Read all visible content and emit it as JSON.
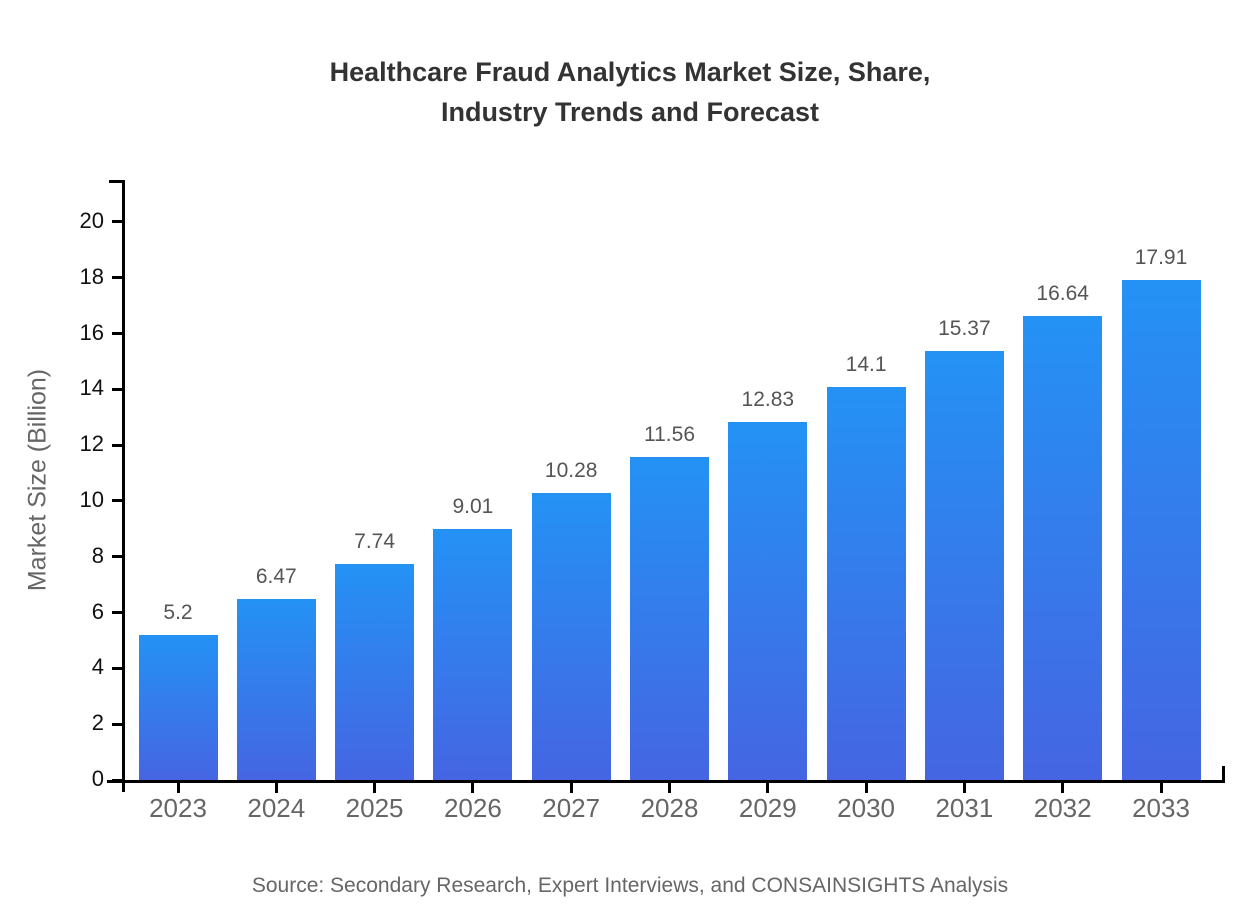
{
  "figure": {
    "title_line1": "Healthcare Fraud Analytics Market Size, Share,",
    "title_line2": "Industry Trends and Forecast",
    "source": "Source: Secondary Research, Expert Interviews, and CONSAINSIGHTS Analysis"
  },
  "chart_data": {
    "type": "bar",
    "title": "Healthcare Fraud Analytics Market Size, Share, Industry Trends and Forecast",
    "categories": [
      "2023",
      "2024",
      "2025",
      "2026",
      "2027",
      "2028",
      "2029",
      "2030",
      "2031",
      "2032",
      "2033"
    ],
    "values": [
      5.2,
      6.47,
      7.74,
      9.01,
      10.28,
      11.56,
      12.83,
      14.1,
      15.37,
      16.64,
      17.91
    ],
    "value_labels": [
      "5.2",
      "6.47",
      "7.74",
      "9.01",
      "10.28",
      "11.56",
      "12.83",
      "14.1",
      "15.37",
      "16.64",
      "17.91"
    ],
    "xlabel": "",
    "ylabel": "Market Size (Billion)",
    "ylim": [
      0,
      21.5
    ],
    "yticks": [
      0,
      2,
      4,
      6,
      8,
      10,
      12,
      14,
      16,
      18,
      20
    ],
    "grid": false,
    "legend": null,
    "colors": {
      "bar_gradient_top": "#2492f5",
      "bar_gradient_bottom": "#4565e2",
      "axis": "#000000",
      "title": "#333333",
      "ytick_labels": "#111111",
      "xtick_labels": "#666666",
      "value_labels": "#555555",
      "source": "#666666"
    }
  }
}
